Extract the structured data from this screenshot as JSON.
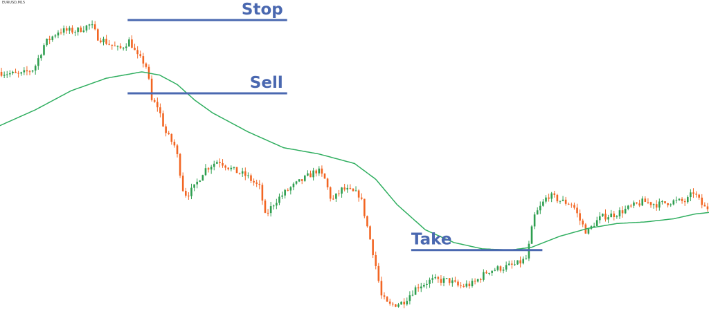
{
  "chart_data": {
    "type": "candlestick",
    "symbol": "EURUSD,M15",
    "grid": false,
    "colors": {
      "bull": "#2e9e4f",
      "bear": "#f26522",
      "moving_average": "#2fae5f",
      "level_line": "#4a68b0",
      "level_text": "#4a68b0",
      "background": "#ffffff"
    },
    "y_range": [
      0,
      100
    ],
    "x_range": [
      0,
      200
    ],
    "levels": [
      {
        "name": "stop",
        "label": "Stop",
        "value": 95.4,
        "x_start": 36,
        "x_end": 81
      },
      {
        "name": "sell",
        "label": "Sell",
        "value": 72.2,
        "x_start": 36,
        "x_end": 81
      },
      {
        "name": "take",
        "label": "Take",
        "value": 22.6,
        "x_start": 116,
        "x_end": 153
      }
    ],
    "price_path": [
      [
        0,
        79
      ],
      [
        6,
        78
      ],
      [
        10,
        80
      ],
      [
        13,
        88
      ],
      [
        17,
        92
      ],
      [
        22,
        92
      ],
      [
        26,
        94
      ],
      [
        28,
        90
      ],
      [
        31,
        88
      ],
      [
        34,
        86
      ],
      [
        37,
        89
      ],
      [
        39,
        84
      ],
      [
        41,
        82
      ],
      [
        42,
        80
      ],
      [
        43,
        70
      ],
      [
        45,
        68
      ],
      [
        47,
        60
      ],
      [
        50,
        55
      ],
      [
        52,
        42
      ],
      [
        53,
        40
      ],
      [
        55,
        42
      ],
      [
        58,
        48
      ],
      [
        62,
        51
      ],
      [
        66,
        48
      ],
      [
        70,
        46
      ],
      [
        74,
        42
      ],
      [
        75,
        33
      ],
      [
        78,
        38
      ],
      [
        82,
        42
      ],
      [
        86,
        45
      ],
      [
        90,
        48
      ],
      [
        92,
        45
      ],
      [
        94,
        38
      ],
      [
        97,
        42
      ],
      [
        102,
        40
      ],
      [
        104,
        30
      ],
      [
        106,
        20
      ],
      [
        108,
        8
      ],
      [
        110,
        5
      ],
      [
        114,
        6
      ],
      [
        118,
        11
      ],
      [
        122,
        13
      ],
      [
        127,
        13
      ],
      [
        130,
        11
      ],
      [
        134,
        12
      ],
      [
        138,
        16
      ],
      [
        142,
        17
      ],
      [
        146,
        18
      ],
      [
        149,
        20
      ],
      [
        151,
        33
      ],
      [
        155,
        40
      ],
      [
        159,
        38
      ],
      [
        162,
        37
      ],
      [
        164,
        32
      ],
      [
        166,
        28
      ],
      [
        168,
        31
      ],
      [
        170,
        33
      ],
      [
        174,
        34
      ],
      [
        178,
        36
      ],
      [
        182,
        38
      ],
      [
        186,
        37
      ],
      [
        190,
        38
      ],
      [
        194,
        38
      ],
      [
        196,
        41
      ],
      [
        199,
        36
      ]
    ],
    "moving_average": [
      [
        0,
        62
      ],
      [
        10,
        67
      ],
      [
        20,
        73
      ],
      [
        30,
        77
      ],
      [
        40,
        79
      ],
      [
        45,
        78
      ],
      [
        50,
        75
      ],
      [
        55,
        70
      ],
      [
        60,
        66
      ],
      [
        70,
        60
      ],
      [
        80,
        55
      ],
      [
        90,
        53
      ],
      [
        100,
        50
      ],
      [
        106,
        45
      ],
      [
        112,
        37
      ],
      [
        120,
        29
      ],
      [
        128,
        25
      ],
      [
        136,
        23
      ],
      [
        144,
        22.6
      ],
      [
        150,
        23.5
      ],
      [
        158,
        27
      ],
      [
        166,
        29.5
      ],
      [
        174,
        31
      ],
      [
        182,
        31.5
      ],
      [
        190,
        32.5
      ],
      [
        196,
        34
      ],
      [
        200,
        34.5
      ]
    ]
  }
}
